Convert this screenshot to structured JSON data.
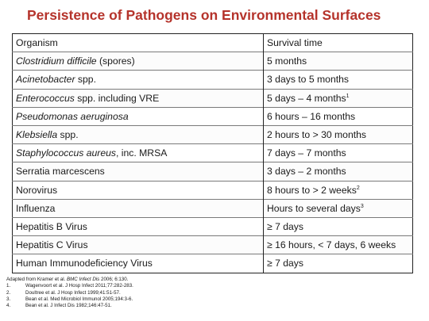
{
  "title": "Persistence of Pathogens on Environmental Surfaces",
  "table": {
    "headers": [
      "Organism",
      "Survival time"
    ],
    "rows": [
      {
        "organism_parts": [
          {
            "text": "Clostridium difficile",
            "italic": true
          },
          {
            "text": " (spores)",
            "italic": false
          }
        ],
        "survival_parts": [
          {
            "text": "5 months",
            "sup": false
          }
        ]
      },
      {
        "organism_parts": [
          {
            "text": "Acinetobacter",
            "italic": true
          },
          {
            "text": " spp.",
            "italic": false
          }
        ],
        "survival_parts": [
          {
            "text": "3 days to 5 months",
            "sup": false
          }
        ]
      },
      {
        "organism_parts": [
          {
            "text": "Enterococcus",
            "italic": true
          },
          {
            "text": " spp. including VRE",
            "italic": false
          }
        ],
        "survival_parts": [
          {
            "text": "5 days – 4 months",
            "sup": false
          },
          {
            "text": "1",
            "sup": true
          }
        ]
      },
      {
        "organism_parts": [
          {
            "text": "Pseudomonas aeruginosa",
            "italic": true
          }
        ],
        "survival_parts": [
          {
            "text": "6 hours – 16 months",
            "sup": false
          }
        ]
      },
      {
        "organism_parts": [
          {
            "text": "Klebsiella",
            "italic": true
          },
          {
            "text": " spp.",
            "italic": false
          }
        ],
        "survival_parts": [
          {
            "text": "2 hours to >  30 months",
            "sup": false
          }
        ]
      },
      {
        "organism_parts": [
          {
            "text": "Staphylococcus aureus",
            "italic": true
          },
          {
            "text": ", inc. MRSA",
            "italic": false
          }
        ],
        "survival_parts": [
          {
            "text": "7 days – 7 months",
            "sup": false
          }
        ]
      },
      {
        "organism_parts": [
          {
            "text": "Serratia marcescens",
            "italic": false
          }
        ],
        "survival_parts": [
          {
            "text": "3 days – 2 months",
            "sup": false
          }
        ]
      },
      {
        "organism_parts": [
          {
            "text": "Norovirus",
            "italic": false
          }
        ],
        "survival_parts": [
          {
            "text": "8 hours to > 2 weeks",
            "sup": false
          },
          {
            "text": "2",
            "sup": true
          }
        ]
      },
      {
        "organism_parts": [
          {
            "text": "Influenza",
            "italic": false
          }
        ],
        "survival_parts": [
          {
            "text": "Hours to several days",
            "sup": false
          },
          {
            "text": "3",
            "sup": true
          }
        ]
      },
      {
        "organism_parts": [
          {
            "text": "Hepatitis B Virus",
            "italic": false
          }
        ],
        "survival_parts": [
          {
            "text": "≥ 7 days",
            "sup": false
          }
        ]
      },
      {
        "organism_parts": [
          {
            "text": "Hepatitis C Virus",
            "italic": false
          }
        ],
        "survival_parts": [
          {
            "text": "≥ 16 hours, < 7 days, 6 weeks",
            "sup": false
          }
        ]
      },
      {
        "organism_parts": [
          {
            "text": "Human Immunodeficiency Virus",
            "italic": false
          }
        ],
        "survival_parts": [
          {
            "text": "≥ 7 days",
            "sup": false
          }
        ]
      }
    ]
  },
  "references": {
    "intro_parts": [
      {
        "text": "Adapted from Kramer et al. ",
        "italic": false
      },
      {
        "text": "BMC Infect Dis",
        "italic": true
      },
      {
        "text": " 2006; 6:130.",
        "italic": false
      }
    ],
    "items": [
      {
        "num": "1.",
        "text": "Wagenvoort et al. J Hosp Infect 2011;77:282-283."
      },
      {
        "num": "2.",
        "text": "Doultree et al. J Hosp Infect 1999;41:51-57."
      },
      {
        "num": "3.",
        "text": "Bean et al. Med Microbiol Immunol 2005;194:3-6."
      },
      {
        "num": "4.",
        "text": "Bean et al. J Infect Dis 1982;146:47-51."
      }
    ]
  }
}
